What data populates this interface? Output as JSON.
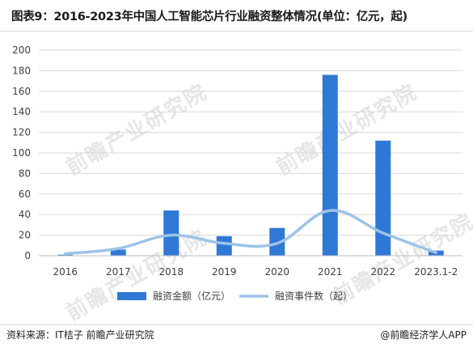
{
  "title": "图表9：2016-2023年中国人工智能芯片行业融资整体情况(单位：亿元，起)",
  "source": "资料来源：IT桔子 前瞻产业研究院",
  "brand": "@前瞻经济学人APP",
  "watermark": "前瞻产业研究院",
  "colors": {
    "bar": "#2f78d6",
    "line": "#9dc3e6",
    "grid": "#d9d9d9",
    "axis_text": "#404040"
  },
  "chart_data": {
    "type": "bar",
    "categories": [
      "2016",
      "2017",
      "2018",
      "2019",
      "2020",
      "2021",
      "2022",
      "2023.1-2"
    ],
    "series": [
      {
        "name": "融资金额（亿元）",
        "type": "bar",
        "values": [
          1,
          6,
          44,
          19,
          27,
          176,
          112,
          5
        ]
      },
      {
        "name": "融资事件数（起）",
        "type": "line",
        "values": [
          2,
          7,
          20,
          12,
          12,
          44,
          22,
          3
        ]
      }
    ],
    "ylim": [
      0,
      200
    ],
    "yticks": [
      0,
      20,
      40,
      60,
      80,
      100,
      120,
      140,
      160,
      180,
      200
    ],
    "grid": true,
    "legend_position": "bottom"
  }
}
